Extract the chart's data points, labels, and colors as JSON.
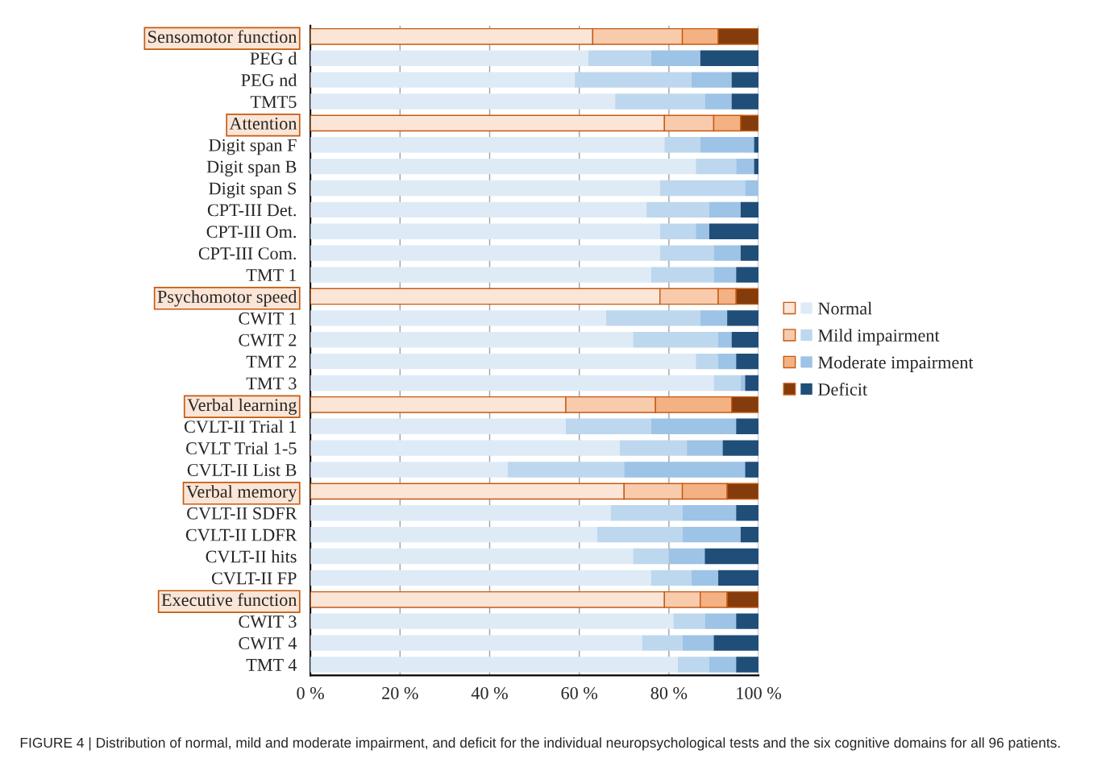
{
  "chart_data": {
    "type": "bar",
    "orientation": "horizontal",
    "stacked": true,
    "categories": [
      "Sensomotor function",
      "PEG d",
      "PEG nd",
      "TMT5",
      "Attention",
      "Digit span F",
      "Digit span B",
      "Digit span S",
      "CPT-III Det.",
      "CPT-III Om.",
      "CPT-III Com.",
      "TMT 1",
      "Psychomotor speed",
      "CWIT 1",
      "CWIT 2",
      "TMT 2",
      "TMT 3",
      "Verbal learning",
      "CVLT-II Trial 1",
      "CVLT Trial 1-5",
      "CVLT-II List B",
      "Verbal memory",
      "CVLT-II SDFR",
      "CVLT-II LDFR",
      "CVLT-II hits",
      "CVLT-II FP",
      "Executive function",
      "CWIT 3",
      "CWIT 4",
      "TMT 4"
    ],
    "series": [
      {
        "name": "Normal",
        "color": "#deebf7",
        "colors": [
          "#fbe5d6",
          "#deebf7",
          "#deebf7",
          "#deebf7",
          "#fbe5d6",
          "#deebf7",
          "#deebf7",
          "#deebf7",
          "#deebf7",
          "#deebf7",
          "#deebf7",
          "#deebf7",
          "#fbe5d6",
          "#deebf7",
          "#deebf7",
          "#deebf7",
          "#deebf7",
          "#fbe5d6",
          "#deebf7",
          "#deebf7",
          "#deebf7",
          "#fbe5d6",
          "#deebf7",
          "#deebf7",
          "#deebf7",
          "#deebf7",
          "#fbe5d6",
          "#deebf7",
          "#deebf7",
          "#deebf7"
        ],
        "values": [
          63,
          62,
          59,
          68,
          79,
          79,
          86,
          78,
          75,
          78,
          78,
          76,
          78,
          66,
          72,
          86,
          90,
          57,
          57,
          69,
          44,
          70,
          67,
          64,
          72,
          76,
          79,
          81,
          74,
          82
        ]
      },
      {
        "name": "Mild impairment",
        "color": "#bdd7ee",
        "colors": [
          "#f8cbad",
          "#bdd7ee",
          "#bdd7ee",
          "#bdd7ee",
          "#f8cbad",
          "#bdd7ee",
          "#bdd7ee",
          "#bdd7ee",
          "#bdd7ee",
          "#bdd7ee",
          "#bdd7ee",
          "#bdd7ee",
          "#f8cbad",
          "#bdd7ee",
          "#bdd7ee",
          "#bdd7ee",
          "#bdd7ee",
          "#f8cbad",
          "#bdd7ee",
          "#bdd7ee",
          "#bdd7ee",
          "#f8cbad",
          "#bdd7ee",
          "#bdd7ee",
          "#bdd7ee",
          "#bdd7ee",
          "#f8cbad",
          "#bdd7ee",
          "#bdd7ee",
          "#bdd7ee"
        ],
        "values": [
          20,
          14,
          26,
          20,
          11,
          8,
          9,
          19,
          14,
          8,
          12,
          14,
          13,
          21,
          19,
          5,
          6,
          20,
          19,
          15,
          26,
          13,
          16,
          19,
          8,
          9,
          8,
          7,
          9,
          7
        ]
      },
      {
        "name": "Moderate impairment",
        "color": "#9dc3e6",
        "colors": [
          "#f4b183",
          "#9dc3e6",
          "#9dc3e6",
          "#9dc3e6",
          "#f4b183",
          "#9dc3e6",
          "#9dc3e6",
          "#9dc3e6",
          "#9dc3e6",
          "#9dc3e6",
          "#9dc3e6",
          "#9dc3e6",
          "#f4b183",
          "#9dc3e6",
          "#9dc3e6",
          "#9dc3e6",
          "#9dc3e6",
          "#f4b183",
          "#9dc3e6",
          "#9dc3e6",
          "#9dc3e6",
          "#f4b183",
          "#9dc3e6",
          "#9dc3e6",
          "#9dc3e6",
          "#9dc3e6",
          "#f4b183",
          "#9dc3e6",
          "#9dc3e6",
          "#9dc3e6"
        ],
        "values": [
          8,
          11,
          9,
          6,
          6,
          12,
          4,
          3,
          7,
          3,
          6,
          5,
          4,
          6,
          3,
          4,
          1,
          17,
          19,
          8,
          27,
          10,
          12,
          13,
          8,
          6,
          6,
          7,
          7,
          6
        ]
      },
      {
        "name": "Deficit",
        "color": "#1f4e79",
        "colors": [
          "#843c0c",
          "#1f4e79",
          "#1f4e79",
          "#1f4e79",
          "#843c0c",
          "#1f4e79",
          "#1f4e79",
          "#1f4e79",
          "#1f4e79",
          "#1f4e79",
          "#1f4e79",
          "#1f4e79",
          "#843c0c",
          "#1f4e79",
          "#1f4e79",
          "#1f4e79",
          "#1f4e79",
          "#843c0c",
          "#1f4e79",
          "#1f4e79",
          "#1f4e79",
          "#843c0c",
          "#1f4e79",
          "#1f4e79",
          "#1f4e79",
          "#1f4e79",
          "#843c0c",
          "#1f4e79",
          "#1f4e79",
          "#1f4e79"
        ],
        "values": [
          9,
          13,
          6,
          6,
          4,
          1,
          1,
          0,
          4,
          11,
          4,
          5,
          5,
          7,
          6,
          5,
          3,
          6,
          5,
          8,
          3,
          7,
          5,
          4,
          12,
          9,
          7,
          5,
          10,
          5
        ]
      }
    ],
    "xlim": [
      0,
      100
    ],
    "xticks": [
      {
        "value": 0,
        "label": "0 %"
      },
      {
        "value": 20,
        "label": "20 %"
      },
      {
        "value": 40,
        "label": "40 %"
      },
      {
        "value": 60,
        "label": "60 %"
      },
      {
        "value": 80,
        "label": "80 %"
      },
      {
        "value": 100,
        "label": "100 %"
      }
    ],
    "grid": "x",
    "legend": "right",
    "annotations": [
      "FIGURE 4 | Distribution of normal, mild and moderate impairment, and deficit for the individual neuropsychological tests and the six cognitive domains for all 96 patients."
    ]
  }
}
